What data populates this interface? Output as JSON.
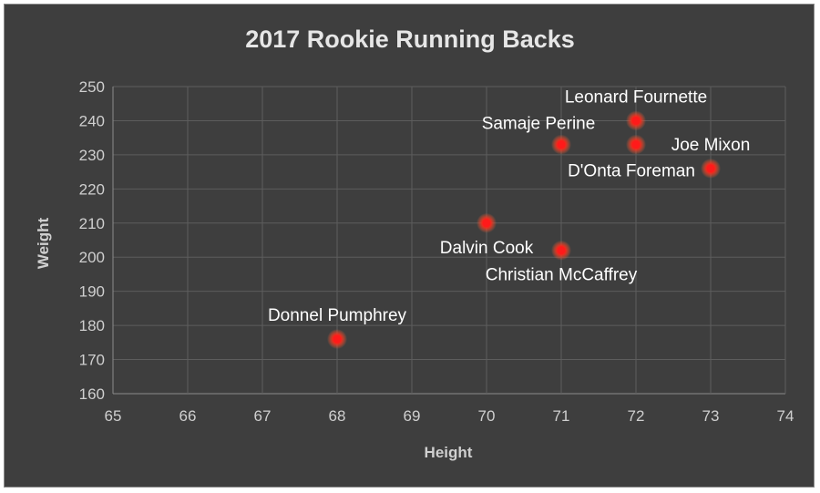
{
  "chart_data": {
    "type": "scatter",
    "title": "2017 Rookie Running Backs",
    "xlabel": "Height",
    "ylabel": "Weight",
    "xlim": [
      65,
      74
    ],
    "ylim": [
      160,
      250
    ],
    "xticks": [
      65,
      66,
      67,
      68,
      69,
      70,
      71,
      72,
      73,
      74
    ],
    "yticks": [
      160,
      170,
      180,
      190,
      200,
      210,
      220,
      230,
      240,
      250
    ],
    "grid": true,
    "marker_color": "#ff1a1a",
    "background": "#3e3e3e",
    "points": [
      {
        "label": "Leonard Fournette",
        "x": 72,
        "y": 240,
        "label_pos": "above"
      },
      {
        "label": "Samaje Perine",
        "x": 71,
        "y": 233,
        "label_pos": "above-left"
      },
      {
        "label": "Joe Mixon",
        "x": 73,
        "y": 226,
        "label_pos": "above"
      },
      {
        "label": "D'Onta Foreman",
        "x": 72,
        "y": 233,
        "label_pos": "below-left"
      },
      {
        "label": "Dalvin Cook",
        "x": 70,
        "y": 210,
        "label_pos": "below"
      },
      {
        "label": "Christian McCaffrey",
        "x": 71,
        "y": 202,
        "label_pos": "below"
      },
      {
        "label": "Donnel Pumphrey",
        "x": 68,
        "y": 176,
        "label_pos": "above"
      }
    ]
  }
}
